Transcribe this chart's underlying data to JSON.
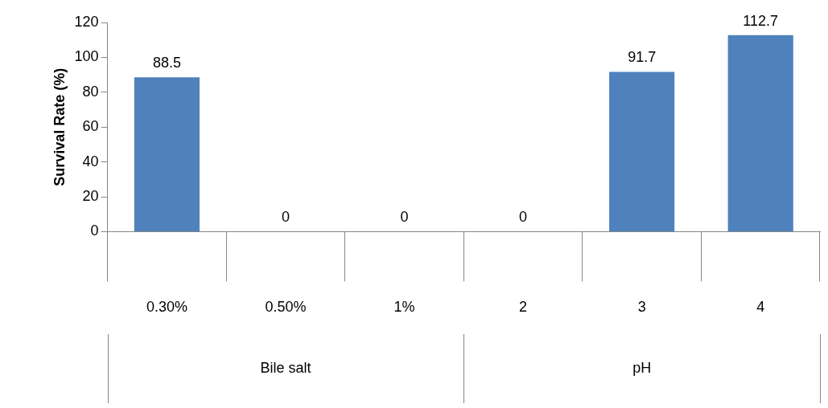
{
  "chart_data": {
    "type": "bar",
    "ylabel": "Survival Rate (%)",
    "categories": [
      "0.30%",
      "0.50%",
      "1%",
      "2",
      "3",
      "4"
    ],
    "values": [
      88.5,
      0,
      0,
      0,
      91.7,
      112.7
    ],
    "color": "#4f81bd",
    "ylim": [
      0,
      120
    ],
    "yticks": [
      0,
      20,
      40,
      60,
      80,
      100,
      120
    ],
    "data_labels": true,
    "grid": false,
    "legend": false,
    "annotations": [
      "Bile salt",
      "pH"
    ]
  }
}
